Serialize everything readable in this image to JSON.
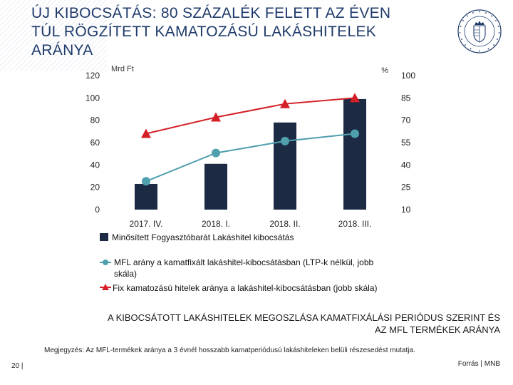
{
  "title": {
    "line1": "ÚJ KIBOCSÁTÁS: 80 SZÁZALÉK FELETT AZ ÉVEN",
    "line2": "TÚL RÖGZÍTETT KAMATOZÁSÚ LAKÁSHITELEK",
    "line3": "ARÁNYA"
  },
  "chart_data": {
    "type": "bar",
    "categories": [
      "2017. IV.",
      "2018. I.",
      "2018. II.",
      "2018. III."
    ],
    "left_axis": {
      "label": "Mrd Ft",
      "min": 0,
      "max": 120,
      "ticks": [
        "0",
        "20",
        "40",
        "60",
        "80",
        "100",
        "120"
      ]
    },
    "right_axis": {
      "label": "%",
      "min": 10,
      "max": 100,
      "ticks": [
        "10",
        "25",
        "40",
        "55",
        "70",
        "85",
        "100"
      ]
    },
    "series": [
      {
        "name": "Minősített Fogyasztóbarát Lakáshitel kibocsátás",
        "kind": "bar",
        "axis": "left",
        "color": "#1c2a44",
        "values": [
          23,
          41,
          78,
          99
        ]
      },
      {
        "name": "MFL arány a kamatfixált lakáshitel-kibocsátásban (LTP-k nélkül, jobb skála)",
        "kind": "line",
        "marker": "circle",
        "axis": "right",
        "color": "#4f9fad",
        "values": [
          29,
          48,
          56,
          61
        ]
      },
      {
        "name": "Fix kamatozású hitelek aránya a lakáshitel-kibocsátásban (jobb skála)",
        "kind": "line",
        "marker": "triangle",
        "axis": "right",
        "color": "#d41f26",
        "values": [
          61,
          72,
          81,
          85
        ]
      }
    ],
    "legend": {
      "item1": "Minősített Fogyasztóbarát Lakáshitel kibocsátás",
      "item2a": "MFL arány a kamatfixált lakáshitel-kibocsátásban (LTP-k nélkül, jobb",
      "item2b": "skála)",
      "item3": "Fix kamatozású hitelek aránya a lakáshitel-kibocsátásban (jobb skála)"
    }
  },
  "caption": {
    "line1": "A KIBOCSÁTOTT LAKÁSHITELEK MEGOSZLÁSA KAMATFIXÁLÁSI PERIÓDUS SZERINT ÉS",
    "line2": "AZ MFL TERMÉKEK ARÁNYA"
  },
  "note": "Megjegyzés: Az MFL-termékek aránya a 3 évnél hosszabb kamatperiódusú lakáshiteleken belüli részesedést mutatja.",
  "source": "Forrás | MNB",
  "page": "20 |",
  "colors": {
    "title": "#1f3b6b",
    "bar": "#1c2a44",
    "mfl_line": "#4f9fad",
    "fix_line": "#d41f26"
  }
}
